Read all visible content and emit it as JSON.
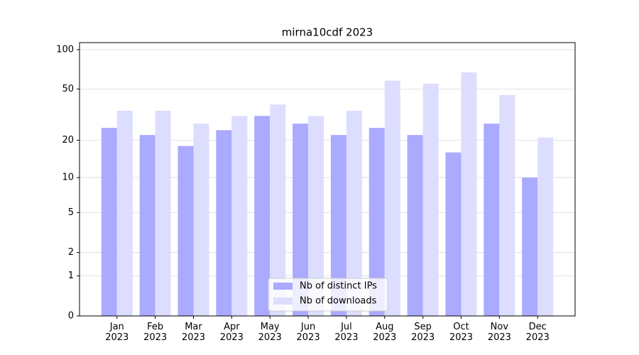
{
  "chart_data": {
    "type": "bar",
    "title": "mirna10cdf 2023",
    "scale": "log1p",
    "categories": [
      "Jan\n2023",
      "Feb\n2023",
      "Mar\n2023",
      "Apr\n2023",
      "May\n2023",
      "Jun\n2023",
      "Jul\n2023",
      "Aug\n2023",
      "Sep\n2023",
      "Oct\n2023",
      "Nov\n2023",
      "Dec\n2023"
    ],
    "series": [
      {
        "name": "Nb of distinct IPs",
        "color": "#aaaaff",
        "values": [
          25,
          22,
          18,
          24,
          31,
          27,
          22,
          25,
          22,
          16,
          27,
          10
        ]
      },
      {
        "name": "Nb of downloads",
        "color": "#ddddff",
        "values": [
          34,
          34,
          27,
          31,
          38,
          31,
          34,
          58,
          55,
          67,
          45,
          21
        ]
      }
    ],
    "ylim": [
      0,
      113
    ],
    "yticks": [
      0,
      1,
      2,
      5,
      10,
      20,
      50,
      100
    ],
    "grid": true,
    "legend": "lower center"
  }
}
